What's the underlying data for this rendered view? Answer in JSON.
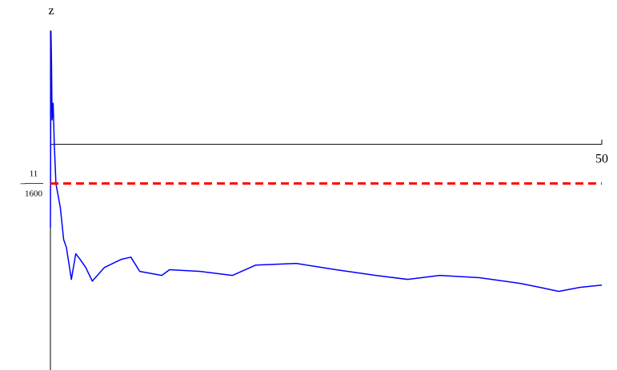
{
  "chart_data": {
    "type": "line",
    "ylabel": "z",
    "xlim": [
      0,
      50
    ],
    "xticks": [
      50
    ],
    "ylim": [
      -0.0396,
      0.02
    ],
    "yticks": [
      {
        "value": -0.006875,
        "label": "−11/1600"
      }
    ],
    "series": [
      {
        "color": "#0000ff",
        "dashed": false,
        "x": [
          0,
          0.05,
          0.1,
          0.15,
          0.25,
          0.35,
          0.5,
          0.9,
          1.2,
          1.45,
          1.9,
          2.3,
          2.7,
          3.2,
          3.8,
          4.9,
          6.4,
          7.3,
          8.1,
          10.1,
          10.8,
          13.6,
          16.5,
          18.6,
          22.3,
          25.9,
          29.5,
          32.4,
          35.3,
          38.9,
          42.6,
          44.4,
          46.1,
          48.0,
          50
        ],
        "values": [
          -0.0146,
          0.0198,
          0.0142,
          0.0043,
          0.0072,
          0.0001,
          -0.0069,
          -0.0111,
          -0.0167,
          -0.0181,
          -0.0237,
          -0.0192,
          -0.0202,
          -0.0216,
          -0.024,
          -0.0216,
          -0.0202,
          -0.0198,
          -0.0223,
          -0.023,
          -0.022,
          -0.0223,
          -0.023,
          -0.0212,
          -0.0209,
          -0.022,
          -0.023,
          -0.0237,
          -0.023,
          -0.0234,
          -0.0244,
          -0.0251,
          -0.0258,
          -0.0251,
          -0.0247
        ]
      },
      {
        "color": "#ff0000",
        "dashed": true,
        "x": [
          0,
          50
        ],
        "values": [
          -0.006875,
          -0.006875
        ]
      }
    ]
  }
}
